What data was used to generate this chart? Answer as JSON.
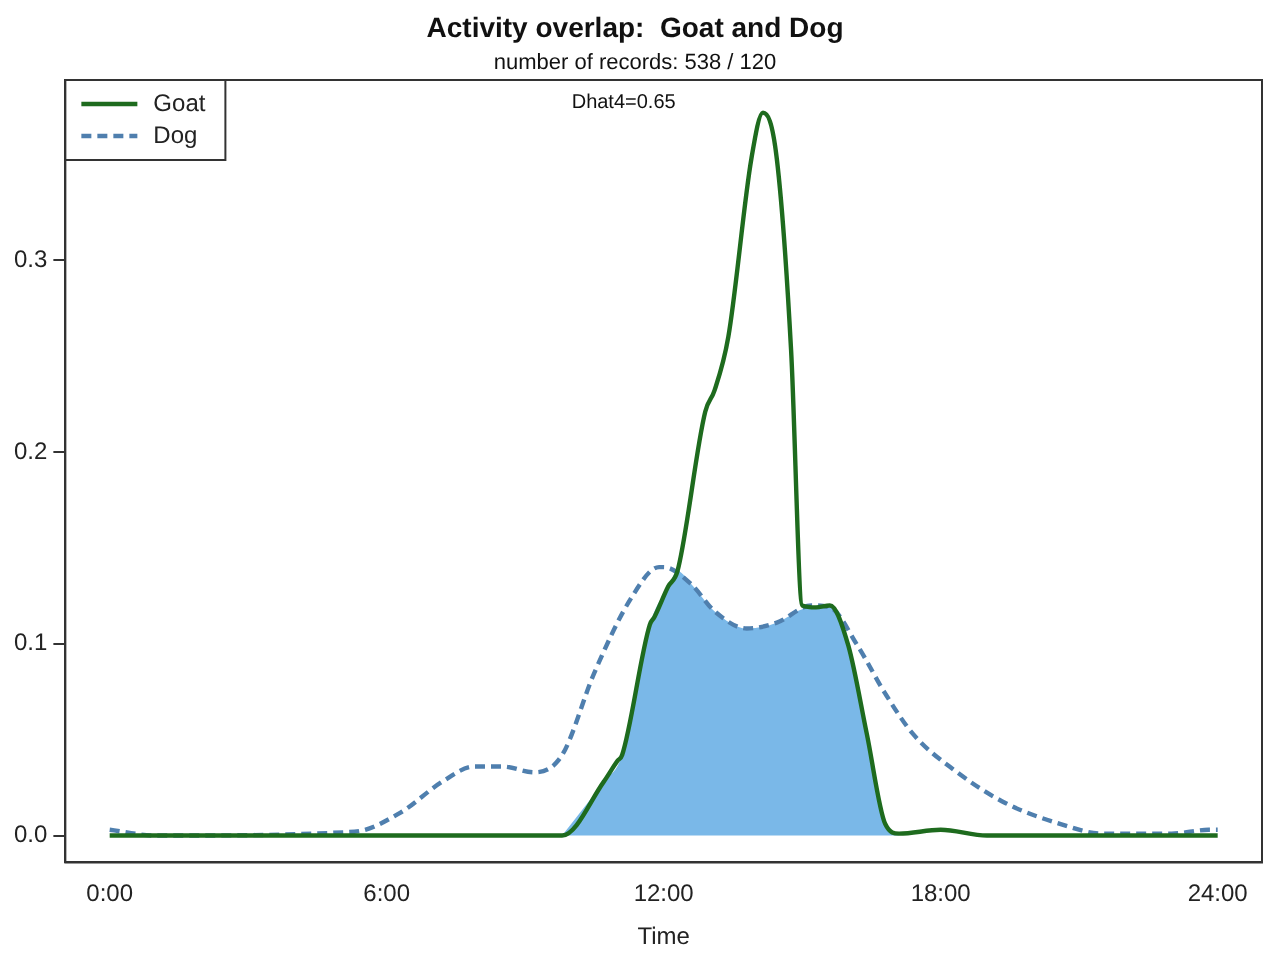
{
  "chart_data": {
    "type": "line",
    "title": "Activity overlap:  Goat and Dog",
    "subtitle": "number of records: 538 / 120",
    "xlabel": "Time",
    "annotations": [
      "Dhat4=0.65"
    ],
    "xlim": [
      -0.96,
      24.96
    ],
    "ylim": [
      -0.014,
      0.394
    ],
    "xticks": [
      {
        "value": 0,
        "label": "0:00"
      },
      {
        "value": 6,
        "label": "6:00"
      },
      {
        "value": 12,
        "label": "12:00"
      },
      {
        "value": 18,
        "label": "18:00"
      },
      {
        "value": 24,
        "label": "24:00"
      }
    ],
    "yticks": [
      {
        "value": 0,
        "label": "0.0"
      },
      {
        "value": 0.1,
        "label": "0.1"
      },
      {
        "value": 0.2,
        "label": "0.2"
      },
      {
        "value": 0.3,
        "label": "0.3"
      }
    ],
    "grid": false,
    "legend": "top left",
    "marker": "none",
    "series": [
      {
        "type": "area",
        "color": "#7ab8e8",
        "x": [
          9.8,
          10.7,
          11.1,
          11.7,
          12.1,
          12.3,
          12.6,
          13.1,
          13.8,
          14.45,
          15.0,
          15.3,
          15.6,
          16.0,
          16.4,
          16.8,
          17.1
        ],
        "values": [
          0,
          0.028,
          0.042,
          0.11,
          0.13,
          0.138,
          0.131,
          0.117,
          0.108,
          0.111,
          0.118,
          0.119,
          0.119,
          0.099,
          0.053,
          0.006,
          0
        ]
      },
      {
        "name": "Goat",
        "color": "#1e6b1e",
        "line_style": "solid",
        "x": [
          0,
          6,
          9.8,
          10.7,
          11.0,
          11.1,
          11.7,
          11.8,
          12.1,
          12.3,
          12.9,
          13.1,
          13.4,
          13.9,
          14.15,
          14.45,
          14.76,
          15.0,
          15.3,
          15.6,
          16.0,
          16.4,
          16.8,
          17.1,
          18.0,
          19.0,
          24
        ],
        "values": [
          0,
          0,
          0,
          0.028,
          0.039,
          0.042,
          0.11,
          0.114,
          0.13,
          0.138,
          0.221,
          0.232,
          0.26,
          0.353,
          0.377,
          0.353,
          0.253,
          0.12,
          0.119,
          0.12,
          0.099,
          0.053,
          0.006,
          0.001,
          0.003,
          0,
          0
        ]
      },
      {
        "name": "Dog",
        "color": "#4f7fae",
        "line_style": "dashed",
        "x": [
          0,
          1,
          5.3,
          6.3,
          7.2,
          7.9,
          8.5,
          9.2,
          9.8,
          10.5,
          11.3,
          11.9,
          12.0,
          12.6,
          13.1,
          13.8,
          14.45,
          15.2,
          15.6,
          16.2,
          16.8,
          17.4,
          18.3,
          19.4,
          20.6,
          21.5,
          23.0,
          23.8,
          24
        ],
        "values": [
          0.003,
          0,
          0.002,
          0.012,
          0.028,
          0.036,
          0.036,
          0.033,
          0.042,
          0.085,
          0.124,
          0.14,
          0.14,
          0.131,
          0.117,
          0.108,
          0.111,
          0.12,
          0.119,
          0.099,
          0.074,
          0.053,
          0.034,
          0.017,
          0.006,
          0.001,
          0.001,
          0.003,
          0.003
        ]
      }
    ]
  }
}
